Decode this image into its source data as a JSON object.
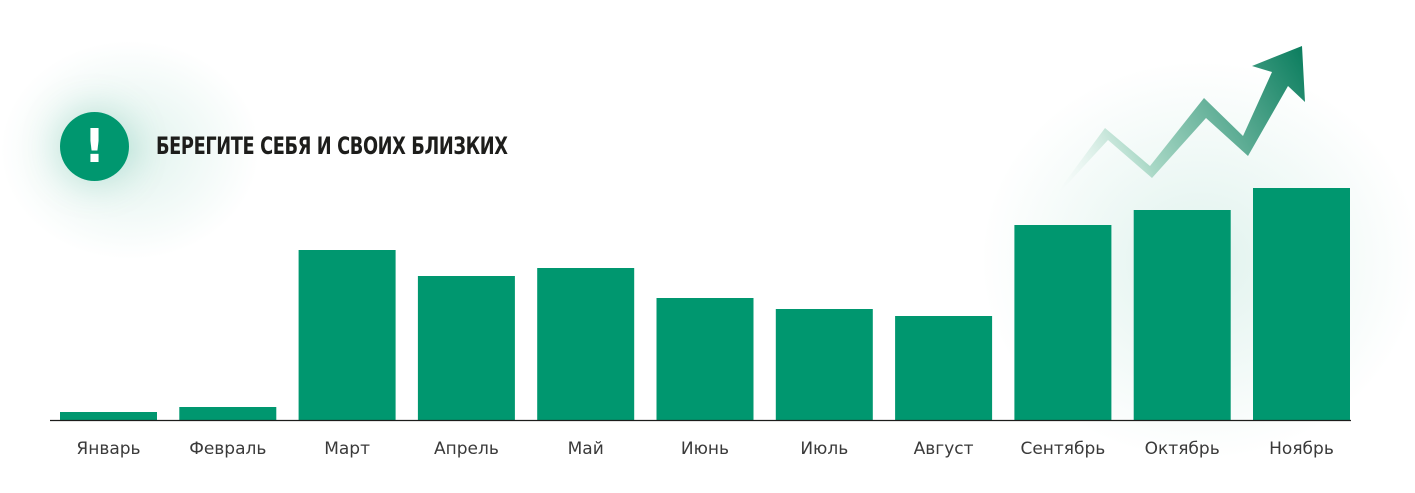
{
  "notice": {
    "title": "БЕРЕГИТЕ СЕБЯ И СВОИХ БЛИЗКИХ",
    "icon": "exclamation-icon",
    "icon_glyph": "!"
  },
  "colors": {
    "bar": "#00976f",
    "axis": "#1d1d1b",
    "label": "#3a3a3a",
    "arrow_dark": "#0b8263",
    "arrow_light": "#cfe9df"
  },
  "chart_data": {
    "type": "bar",
    "categories": [
      "Январь",
      "Февраль",
      "Март",
      "Апрель",
      "Май",
      "Июнь",
      "Июль",
      "Август",
      "Сентябрь",
      "Октябрь",
      "Ноябрь"
    ],
    "values": [
      8,
      13,
      170,
      144,
      152,
      122,
      111,
      104,
      195,
      210,
      232
    ],
    "ylim": [
      0,
      240
    ],
    "grid": false,
    "legend": "none",
    "trend_arrow": "up"
  }
}
